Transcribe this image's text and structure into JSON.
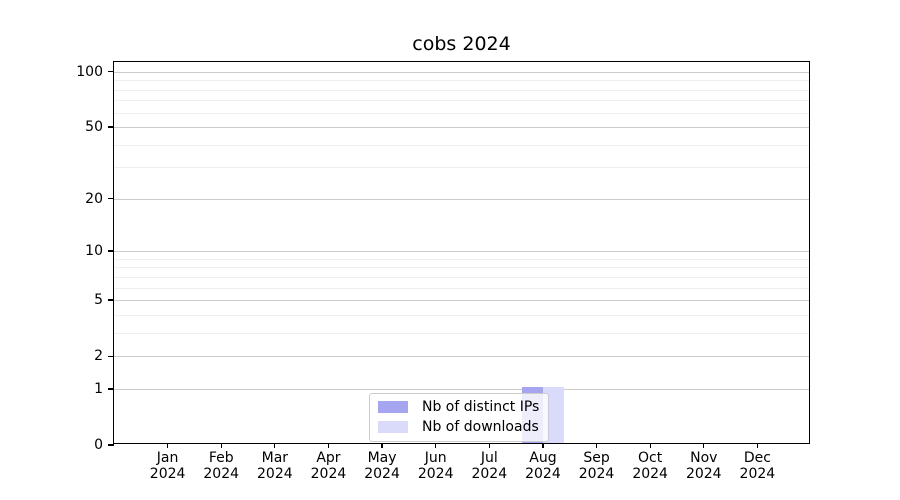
{
  "title": "cobs 2024",
  "legend": {
    "items": [
      {
        "label": "Nb of distinct IPs",
        "color": "#a6a6f0"
      },
      {
        "label": "Nb of downloads",
        "color": "#dadafb"
      }
    ]
  },
  "chart_data": {
    "type": "bar",
    "title": "cobs 2024",
    "categories": [
      "Jan 2024",
      "Feb 2024",
      "Mar 2024",
      "Apr 2024",
      "May 2024",
      "Jun 2024",
      "Jul 2024",
      "Aug 2024",
      "Sep 2024",
      "Oct 2024",
      "Nov 2024",
      "Dec 2024"
    ],
    "series": [
      {
        "name": "Nb of distinct IPs",
        "color": "#a6a6f0",
        "values": [
          0,
          0,
          0,
          0,
          0,
          0,
          0,
          1,
          0,
          0,
          0,
          0
        ]
      },
      {
        "name": "Nb of downloads",
        "color": "#dadafb",
        "values": [
          0,
          0,
          0,
          0,
          0,
          0,
          0,
          1,
          0,
          0,
          0,
          0
        ]
      }
    ],
    "xlabel": "",
    "ylabel": "",
    "y_scale": "log1p",
    "ylim": [
      0,
      113
    ],
    "y_major_ticks": [
      0,
      1,
      2,
      5,
      10,
      20,
      50,
      100
    ],
    "y_minor_gridlines": [
      3,
      4,
      6,
      7,
      8,
      9,
      30,
      40,
      60,
      70,
      80,
      90
    ],
    "grid": "horizontal",
    "legend_position": "lower-center",
    "grid_major_color": "#cccccc",
    "grid_minor_color": "#eeeeee"
  }
}
